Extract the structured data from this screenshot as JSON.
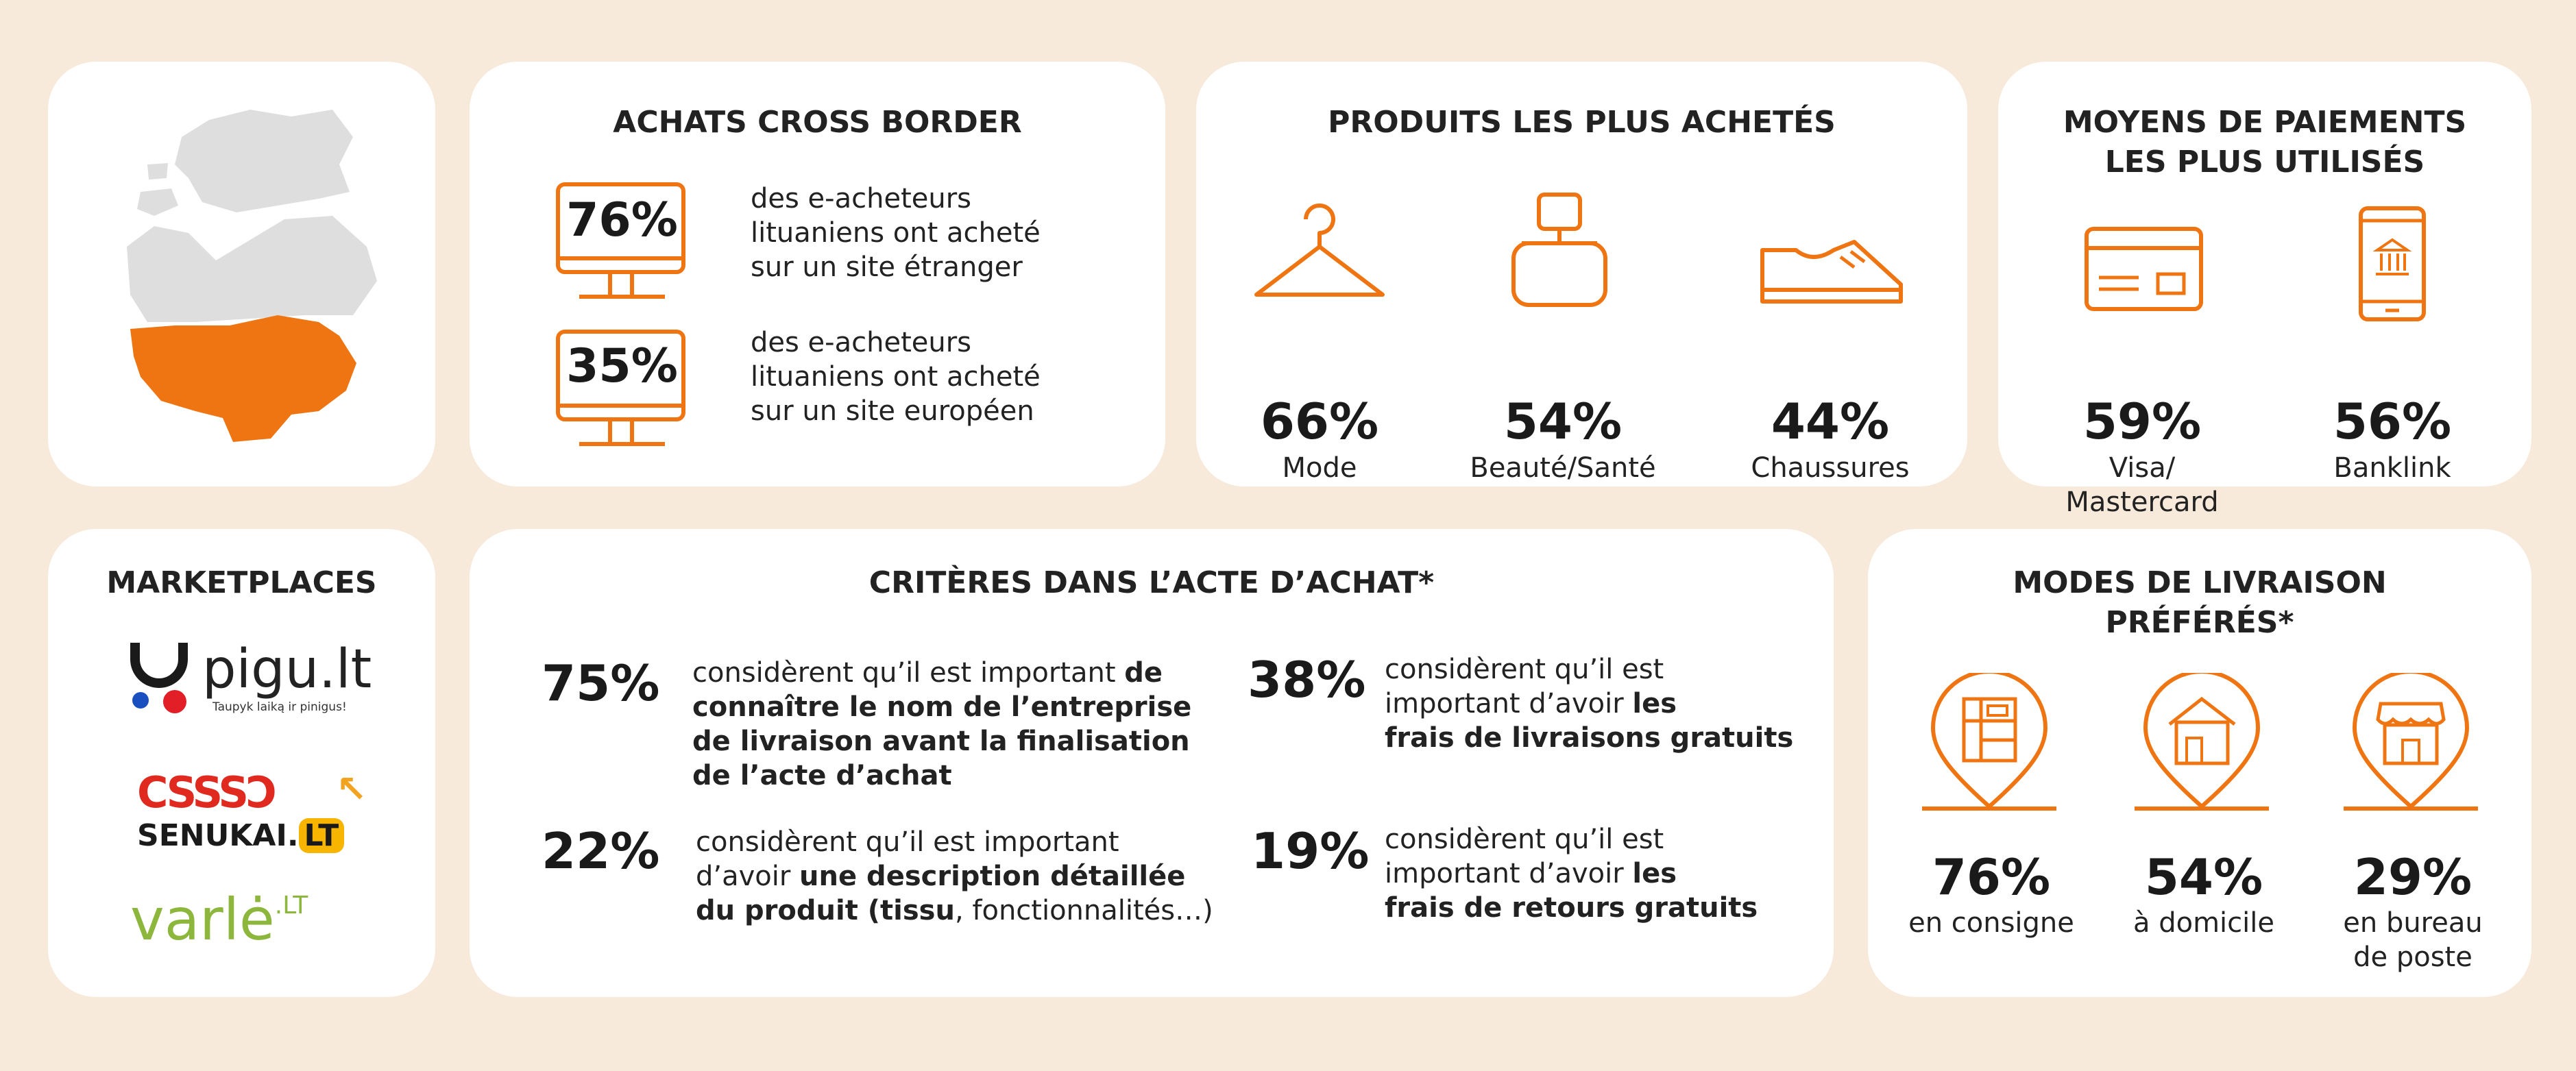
{
  "accent_color": "#ef7512",
  "background_color": "#f8eadb",
  "map": {
    "highlight": "Lituanie",
    "icon": "baltic-map-icon"
  },
  "cross_border": {
    "title": "ACHATS CROSS BORDER",
    "items": [
      {
        "value": "76%",
        "line1": "des e-acheteurs",
        "line2": "lituaniens ont acheté",
        "line3": "sur un site étranger"
      },
      {
        "value": "35%",
        "line1": "des e-acheteurs",
        "line2": "lituaniens ont acheté",
        "line3": "sur un site européen"
      }
    ]
  },
  "products": {
    "title": "PRODUITS LES PLUS ACHETÉS",
    "items": [
      {
        "value": "66%",
        "label": "Mode",
        "icon": "hanger-icon"
      },
      {
        "value": "54%",
        "label": "Beauté/Santé",
        "icon": "perfume-bottle-icon"
      },
      {
        "value": "44%",
        "label": "Chaussures",
        "icon": "sneaker-icon"
      }
    ]
  },
  "payments": {
    "title_line1": "MOYENS DE PAIEMENTS",
    "title_line2": "LES PLUS UTILISÉS",
    "items": [
      {
        "value": "59%",
        "label_line1": "Visa/",
        "label_line2": "Mastercard",
        "icon": "credit-card-icon"
      },
      {
        "value": "56%",
        "label_line1": "Banklink",
        "label_line2": "",
        "icon": "mobile-bank-icon"
      }
    ]
  },
  "marketplaces": {
    "title": "MARKETPLACES",
    "pigu": {
      "name": "pigu.lt",
      "tagline": "Taupyk laiką ir pinigus!"
    },
    "senukai": {
      "mark": "CSSSƆ",
      "name": "SENUKAI.",
      "suffix": "LT"
    },
    "varle": {
      "name": "varlė",
      "suffix": ".LT"
    }
  },
  "criteria": {
    "title": "CRITÈRES DANS L’ACTE D’ACHAT*",
    "items": [
      {
        "value": "75%",
        "l1_plain": "considèrent qu’il est important ",
        "l1_bold": "de",
        "l2": "connaître le nom de l’entreprise",
        "l3": "de livraison avant la finalisation",
        "l4": "de l’acte d’achat"
      },
      {
        "value": "38%",
        "l1": "considèrent qu’il est",
        "l2_plain": "important d’avoir ",
        "l2_bold": "les",
        "l3": "frais de livraisons gratuits"
      },
      {
        "value": "22%",
        "l1": "considèrent qu’il est important",
        "l2_plain": "d’avoir ",
        "l2_bold": "une description détaillée",
        "l3_bold": "du produit (tissu",
        "l3_plain": ", fonctionnalités…)"
      },
      {
        "value": "19%",
        "l1": "considèrent qu’il est",
        "l2_plain": "important d’avoir ",
        "l2_bold": "les",
        "l3": "frais de retours gratuits"
      }
    ]
  },
  "delivery": {
    "title_line1": "MODES DE LIVRAISON",
    "title_line2": "PRÉFÉRÉS*",
    "items": [
      {
        "value": "76%",
        "label_line1": "en consigne",
        "label_line2": "",
        "icon": "locker-pin-icon"
      },
      {
        "value": "54%",
        "label_line1": "à domicile",
        "label_line2": "",
        "icon": "home-pin-icon"
      },
      {
        "value": "29%",
        "label_line1": "en bureau",
        "label_line2": "de poste",
        "icon": "post-office-pin-icon"
      }
    ]
  }
}
